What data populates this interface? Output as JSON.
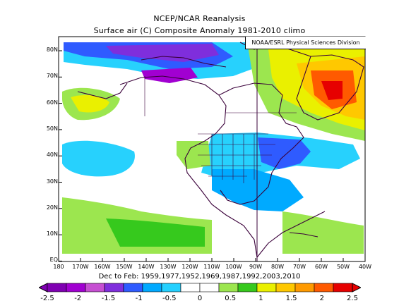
{
  "title": {
    "line1": "NCEP/NCAR Reanalysis",
    "line2": "Surface air (C) Composite Anomaly 1981-2010 climo"
  },
  "credit": "NOAA/ESRL Physical Sciences Division",
  "axes": {
    "lat_labels": [
      "80N",
      "70N",
      "60N",
      "50N",
      "40N",
      "30N",
      "20N",
      "10N",
      "EQ"
    ],
    "lon_labels": [
      "180",
      "170W",
      "160W",
      "150W",
      "140W",
      "130W",
      "120W",
      "110W",
      "100W",
      "90W",
      "80W",
      "70W",
      "60W",
      "50W",
      "40W"
    ]
  },
  "caption": "Dec to Feb: 1959,1977,1952,1969,1987,1992,2003,2010",
  "colorbar": {
    "labels": [
      "-2.5",
      "-2",
      "-1.5",
      "-1",
      "-0.5",
      "0",
      "0.5",
      "1",
      "1.5",
      "2",
      "2.5"
    ],
    "colors": [
      "#7f00b2",
      "#a100d1",
      "#c64fd2",
      "#7f2edc",
      "#2f5bff",
      "#00a9ff",
      "#24d0ff",
      "#ffffff",
      "#ffffff",
      "#9ce64f",
      "#36c91d",
      "#eaf000",
      "#ffc800",
      "#ff9a00",
      "#ff5a00",
      "#e60000"
    ]
  }
}
